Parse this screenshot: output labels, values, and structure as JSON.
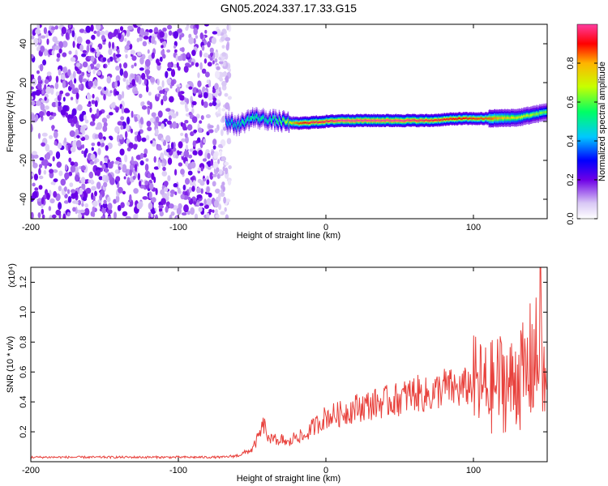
{
  "title": "GN05.2024.337.17.33.G15",
  "chart_data": [
    {
      "type": "heatmap",
      "xlabel": "Height of straight line (km)",
      "ylabel": "Frequency (Hz)",
      "xlim": [
        -200,
        150
      ],
      "ylim": [
        -50,
        50
      ],
      "x_ticks": [
        -200,
        -100,
        0,
        100
      ],
      "y_ticks": [
        -40,
        -20,
        0,
        20,
        40
      ],
      "colorbar": {
        "label": "Normalized spectral amplitude",
        "range": [
          0,
          1
        ],
        "ticks": [
          "0.0",
          "0.2",
          "0.4",
          "0.6",
          "0.8"
        ],
        "colormap": "rainbow (white-violet to magenta-red)"
      },
      "noise_region_x": [
        -200,
        -65
      ],
      "ridge": {
        "x": [
          -68,
          -60,
          -50,
          -40,
          -30,
          -20,
          -10,
          0,
          10,
          30,
          50,
          70,
          90,
          110,
          130,
          150
        ],
        "frequency_hz": [
          0,
          -2,
          2,
          1,
          0,
          -1,
          -0.5,
          0,
          0.5,
          0.5,
          0.5,
          0.5,
          1.5,
          1.5,
          2,
          5
        ],
        "peak_amplitude": [
          0.45,
          0.5,
          0.55,
          0.5,
          0.6,
          0.85,
          0.95,
          0.95,
          1.0,
          1.0,
          1.0,
          0.95,
          0.9,
          0.85,
          0.7,
          0.6
        ]
      }
    },
    {
      "type": "line",
      "xlabel": "Height of straight line (km)",
      "ylabel": "SNR (10 * v/v)",
      "y_multiplier": "(x10⁴)",
      "xlim": [
        -200,
        150
      ],
      "ylim": [
        0,
        1.3
      ],
      "x_ticks": [
        -200,
        -100,
        0,
        100
      ],
      "y_ticks": [
        "0.2",
        "0.4",
        "0.6",
        "0.8",
        "1.0",
        "1.2"
      ],
      "color": "#e8413c",
      "series": [
        {
          "x": [
            -200,
            -150,
            -100,
            -70,
            -60,
            -50,
            -45,
            -42,
            -38,
            -35,
            -32,
            -30,
            -25,
            -20,
            -15,
            -10,
            -5,
            0,
            10,
            20,
            30,
            40,
            50,
            60,
            70,
            80,
            90,
            100,
            110,
            120,
            125,
            130,
            135,
            140,
            145,
            150
          ],
          "y": [
            0.03,
            0.03,
            0.03,
            0.03,
            0.04,
            0.08,
            0.18,
            0.25,
            0.12,
            0.2,
            0.1,
            0.15,
            0.12,
            0.18,
            0.16,
            0.22,
            0.26,
            0.3,
            0.32,
            0.36,
            0.38,
            0.4,
            0.42,
            0.46,
            0.44,
            0.5,
            0.48,
            0.52,
            0.48,
            0.55,
            0.5,
            0.6,
            0.55,
            0.7,
            0.65,
            0.45
          ]
        }
      ]
    }
  ]
}
